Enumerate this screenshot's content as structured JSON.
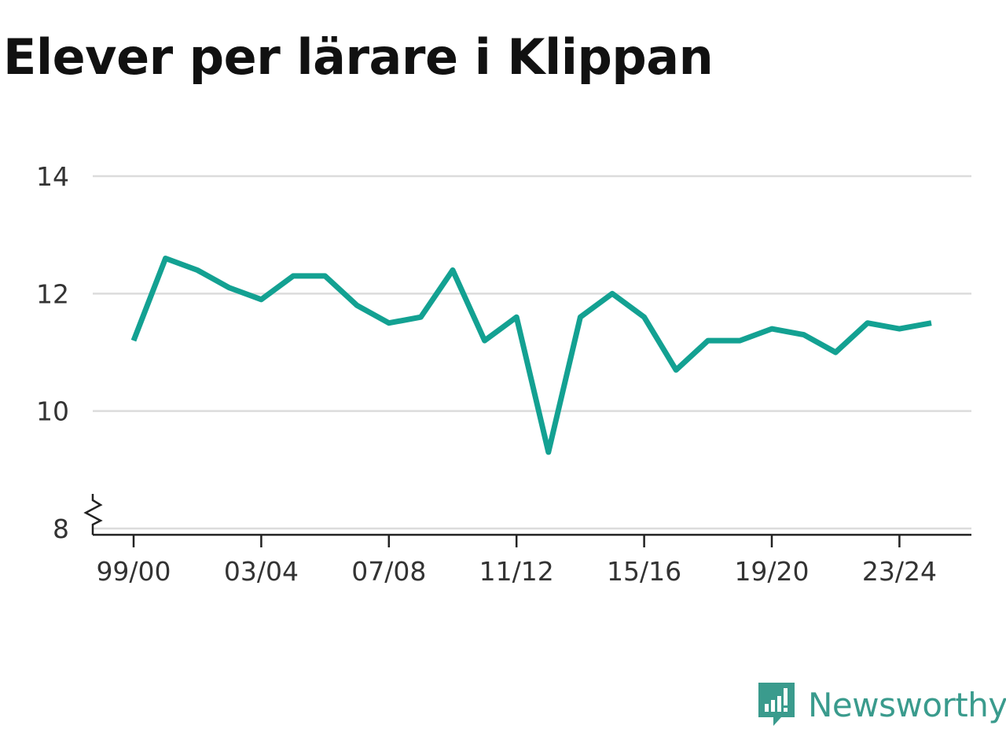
{
  "chart_data": {
    "type": "line",
    "title": "Elever per lärare i Klippan",
    "xlabel": "",
    "ylabel": "",
    "ylim": [
      8,
      14
    ],
    "yticks": [
      8,
      10,
      12,
      14
    ],
    "y_axis_break": true,
    "grid": true,
    "line_color": "#13a192",
    "x": [
      "99/00",
      "00/01",
      "01/02",
      "02/03",
      "03/04",
      "04/05",
      "05/06",
      "06/07",
      "07/08",
      "08/09",
      "09/10",
      "10/11",
      "11/12",
      "12/13",
      "13/14",
      "14/15",
      "15/16",
      "16/17",
      "17/18",
      "18/19",
      "19/20",
      "20/21",
      "21/22",
      "22/23",
      "23/24",
      "24/25"
    ],
    "xtick_labels": [
      "99/00",
      "03/04",
      "07/08",
      "11/12",
      "15/16",
      "19/20",
      "23/24"
    ],
    "series": [
      {
        "values": [
          11.2,
          12.6,
          12.4,
          12.1,
          11.9,
          12.3,
          12.3,
          11.8,
          11.5,
          11.6,
          12.4,
          11.2,
          11.6,
          9.3,
          11.6,
          12.0,
          11.6,
          10.7,
          11.2,
          11.2,
          11.4,
          11.3,
          11.0,
          11.5,
          11.4,
          11.5
        ]
      }
    ]
  },
  "brand": {
    "name": "Newsworthy",
    "color": "#3a9b8d"
  }
}
